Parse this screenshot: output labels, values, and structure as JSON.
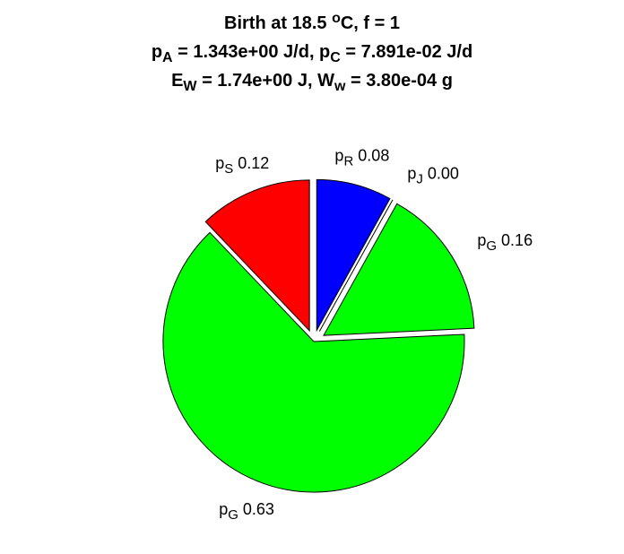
{
  "chart_data": {
    "type": "pie",
    "title": [
      [
        {
          "text": "Birth at 18.5 "
        },
        {
          "text": "o",
          "script": "sup"
        },
        {
          "text": "C, f = 1"
        }
      ],
      [
        {
          "text": "p"
        },
        {
          "text": "A",
          "script": "sub"
        },
        {
          "text": " = 1.343e+00 J/d, p"
        },
        {
          "text": "C",
          "script": "sub"
        },
        {
          "text": " = 7.891e-02 J/d"
        }
      ],
      [
        {
          "text": "E"
        },
        {
          "text": "W",
          "script": "sub"
        },
        {
          "text": " = 1.74e+00 J, W"
        },
        {
          "text": "w",
          "script": "sub"
        },
        {
          "text": " = 3.80e-04 g"
        }
      ]
    ],
    "categories": [
      {
        "main": "p",
        "sub": "R"
      },
      {
        "main": "p",
        "sub": "J"
      },
      {
        "main": "p",
        "sub": "G"
      },
      {
        "main": "p",
        "sub": "G"
      },
      {
        "main": "p",
        "sub": "S"
      }
    ],
    "values": [
      0.08,
      0,
      0.16,
      0.63,
      0.12
    ],
    "value_labels": [
      "0.08",
      "0.00",
      "0.16",
      "0.63",
      "0.12"
    ],
    "colors": [
      "#0000ff",
      "#00ff00",
      "#00ff00",
      "#00ff00",
      "#ff0000"
    ],
    "explode": [
      true,
      true,
      true,
      false,
      true
    ]
  }
}
